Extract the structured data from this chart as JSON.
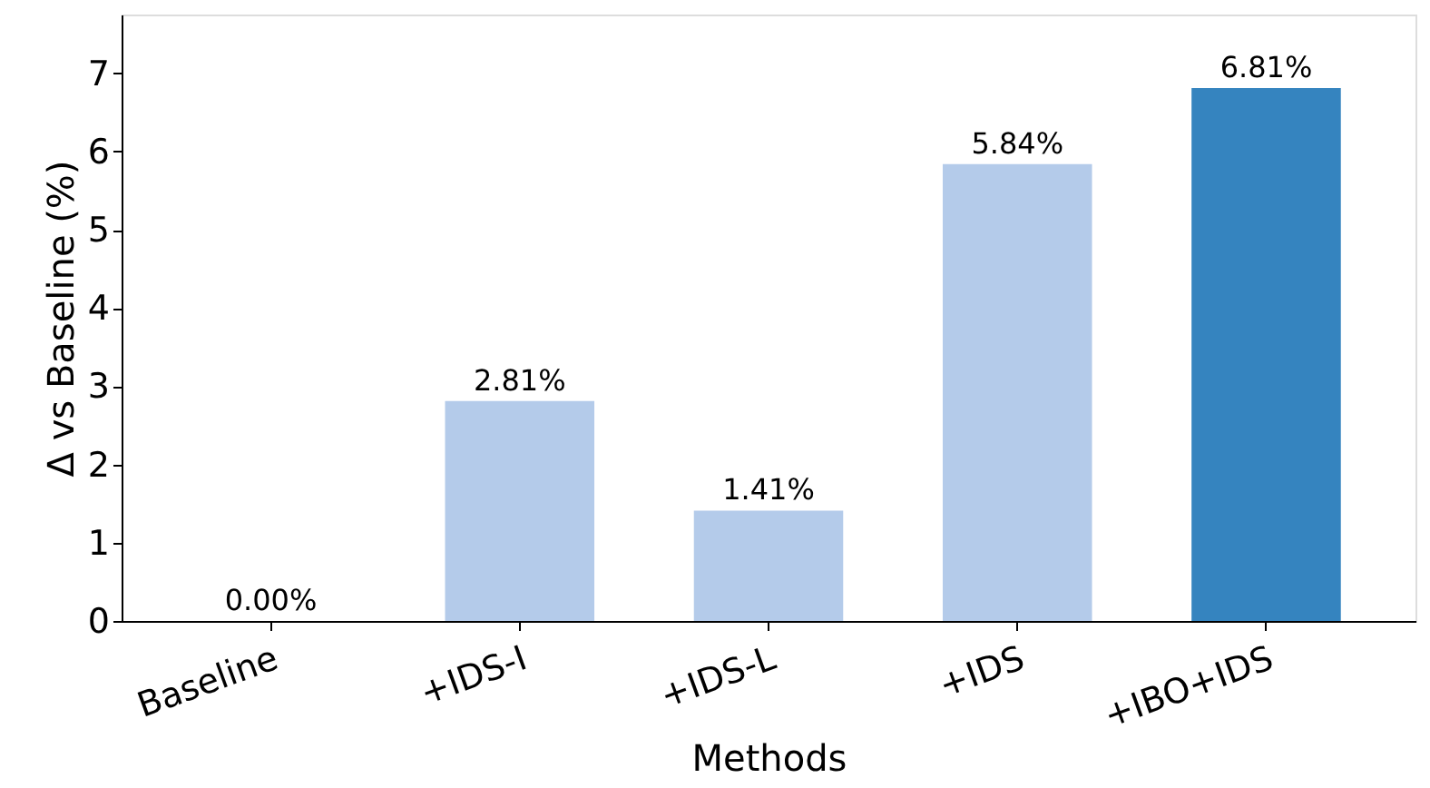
{
  "chart_data": {
    "type": "bar",
    "xlabel": "Methods",
    "ylabel": "Δ vs Baseline (%)",
    "categories": [
      "Baseline",
      "+IDS-I",
      "+IDS-L",
      "+IDS",
      "+IBO+IDS"
    ],
    "values": [
      0.0,
      2.81,
      1.41,
      5.84,
      6.81
    ],
    "colors": [
      "#b4cbea",
      "#b4cbea",
      "#b4cbea",
      "#b4cbea",
      "#3584bf"
    ],
    "value_labels": [
      "0.00%",
      "2.81%",
      "1.41%",
      "5.84%",
      "6.81%"
    ],
    "ylim": [
      0,
      7.75
    ],
    "yticks": [
      0,
      1,
      2,
      3,
      4,
      5,
      6,
      7
    ]
  }
}
